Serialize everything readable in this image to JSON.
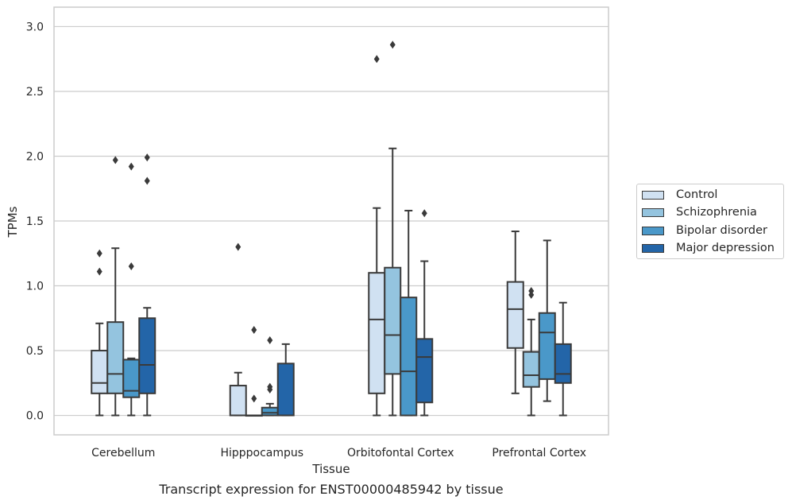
{
  "chart_data": {
    "type": "boxplot",
    "title": "",
    "caption": "Transcript expression for ENST00000485942 by tissue",
    "xlabel": "Tissue",
    "ylabel": "TPMs",
    "ylim": [
      -0.15,
      3.15
    ],
    "yticks": [
      "0.0",
      "0.5",
      "1.0",
      "1.5",
      "2.0",
      "2.5",
      "3.0"
    ],
    "grid": true,
    "legend_position": "outside-right",
    "categories": [
      "Cerebellum",
      "Hipppocampus",
      "Orbitofontal Cortex",
      "Prefrontal Cortex"
    ],
    "series": [
      {
        "name": "Control",
        "color": "#d0e1f2",
        "boxes": [
          {
            "whislo": 0.0,
            "q1": 0.17,
            "med": 0.25,
            "q3": 0.5,
            "whishi": 0.71,
            "fliers": [
              1.11,
              1.25
            ]
          },
          {
            "whislo": 0.0,
            "q1": 0.0,
            "med": 0.0,
            "q3": 0.23,
            "whishi": 0.33,
            "fliers": [
              1.3
            ]
          },
          {
            "whislo": 0.0,
            "q1": 0.17,
            "med": 0.74,
            "q3": 1.1,
            "whishi": 1.6,
            "fliers": [
              2.75
            ]
          },
          {
            "whislo": 0.17,
            "q1": 0.52,
            "med": 0.82,
            "q3": 1.03,
            "whishi": 1.42,
            "fliers": []
          }
        ]
      },
      {
        "name": "Schizophrenia",
        "color": "#94c4df",
        "boxes": [
          {
            "whislo": 0.0,
            "q1": 0.17,
            "med": 0.32,
            "q3": 0.72,
            "whishi": 1.29,
            "fliers": [
              1.97
            ]
          },
          {
            "whislo": 0.0,
            "q1": 0.0,
            "med": 0.0,
            "q3": 0.0,
            "whishi": 0.0,
            "fliers": [
              0.13,
              0.66
            ]
          },
          {
            "whislo": 0.0,
            "q1": 0.32,
            "med": 0.62,
            "q3": 1.14,
            "whishi": 2.06,
            "fliers": [
              2.86
            ]
          },
          {
            "whislo": 0.0,
            "q1": 0.22,
            "med": 0.31,
            "q3": 0.49,
            "whishi": 0.74,
            "fliers": [
              0.93,
              0.96
            ]
          }
        ]
      },
      {
        "name": "Bipolar disorder",
        "color": "#4a98c9",
        "boxes": [
          {
            "whislo": 0.0,
            "q1": 0.14,
            "med": 0.19,
            "q3": 0.43,
            "whishi": 0.44,
            "fliers": [
              1.15,
              1.92
            ]
          },
          {
            "whislo": 0.0,
            "q1": 0.0,
            "med": 0.02,
            "q3": 0.06,
            "whishi": 0.09,
            "fliers": [
              0.2,
              0.22,
              0.58
            ]
          },
          {
            "whislo": 0.0,
            "q1": 0.0,
            "med": 0.34,
            "q3": 0.91,
            "whishi": 1.58,
            "fliers": []
          },
          {
            "whislo": 0.11,
            "q1": 0.28,
            "med": 0.64,
            "q3": 0.79,
            "whishi": 1.35,
            "fliers": []
          }
        ]
      },
      {
        "name": "Major depression",
        "color": "#2365a8",
        "boxes": [
          {
            "whislo": 0.0,
            "q1": 0.17,
            "med": 0.39,
            "q3": 0.75,
            "whishi": 0.83,
            "fliers": [
              1.81,
              1.99
            ]
          },
          {
            "whislo": 0.0,
            "q1": 0.0,
            "med": 0.0,
            "q3": 0.4,
            "whishi": 0.55,
            "fliers": []
          },
          {
            "whislo": 0.0,
            "q1": 0.1,
            "med": 0.45,
            "q3": 0.59,
            "whishi": 1.19,
            "fliers": [
              1.56
            ]
          },
          {
            "whislo": 0.0,
            "q1": 0.25,
            "med": 0.32,
            "q3": 0.55,
            "whishi": 0.87,
            "fliers": []
          }
        ]
      }
    ]
  }
}
